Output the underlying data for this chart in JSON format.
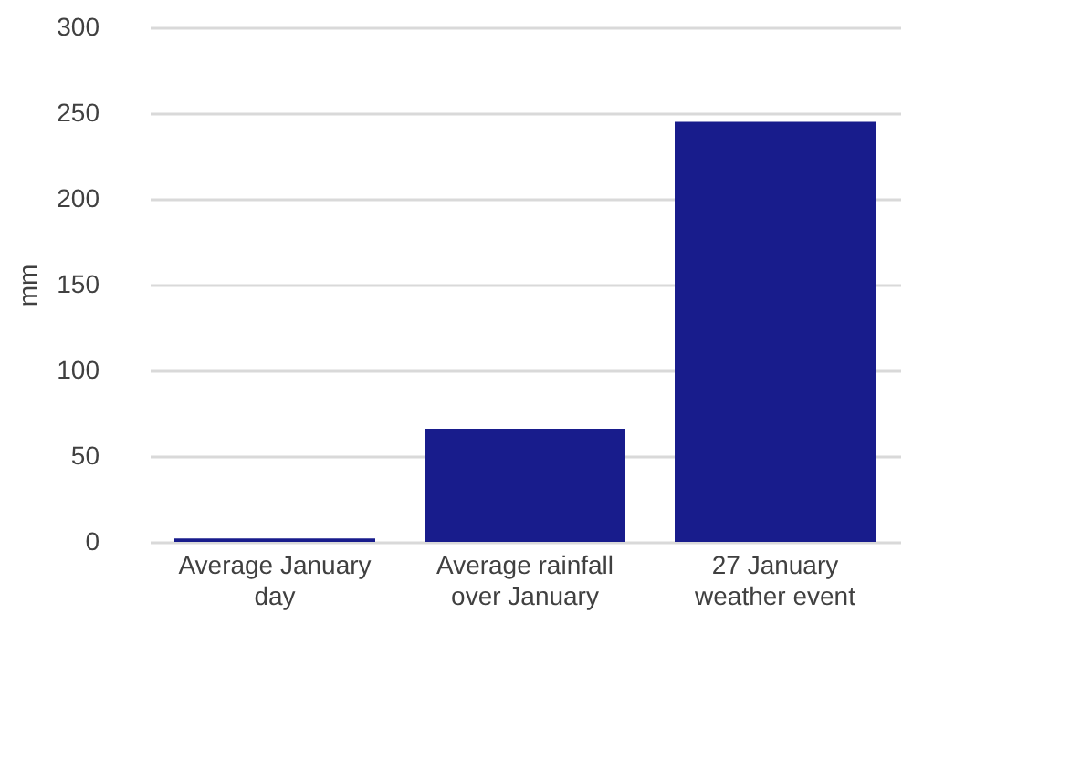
{
  "chart_data": {
    "type": "bar",
    "ylabel": "mm",
    "categories": [
      "Average January day",
      "Average rainfall over January",
      "27 January weather event"
    ],
    "values": [
      2,
      66,
      245
    ],
    "color": "#181c8c",
    "ylim": [
      0,
      300
    ],
    "yticks": [
      0,
      50,
      100,
      150,
      200,
      250,
      300
    ],
    "grid": "y"
  }
}
